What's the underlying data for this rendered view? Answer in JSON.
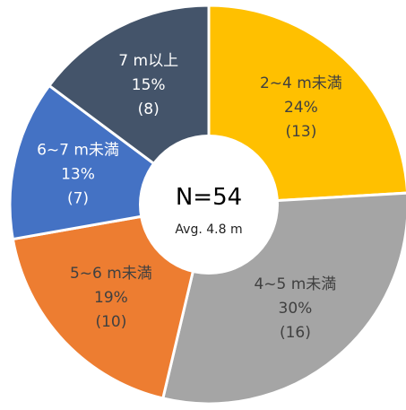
{
  "chart_data": {
    "type": "pie",
    "donut": true,
    "center_label": "N=54",
    "center_sublabel": "Avg. 4.8 m",
    "slices": [
      {
        "category": "2~4 m未満",
        "percent": "24%",
        "count": "(13)",
        "value": 13,
        "color": "#FFC000",
        "text_color": "#404040"
      },
      {
        "category": "4~5 m未満",
        "percent": "30%",
        "count": "(16)",
        "value": 16,
        "color": "#A5A5A5",
        "text_color": "#404040"
      },
      {
        "category": "5~6 m未満",
        "percent": "19%",
        "count": "(10)",
        "value": 10,
        "color": "#ED7D31",
        "text_color": "#404040"
      },
      {
        "category": "6~7 m未満",
        "percent": "13%",
        "count": "(7)",
        "value": 7,
        "color": "#4472C4",
        "text_color": "#FFFFFF"
      },
      {
        "category": "7 m以上",
        "percent": "15%",
        "count": "(8)",
        "value": 8,
        "color": "#44546A",
        "text_color": "#FFFFFF"
      }
    ]
  }
}
